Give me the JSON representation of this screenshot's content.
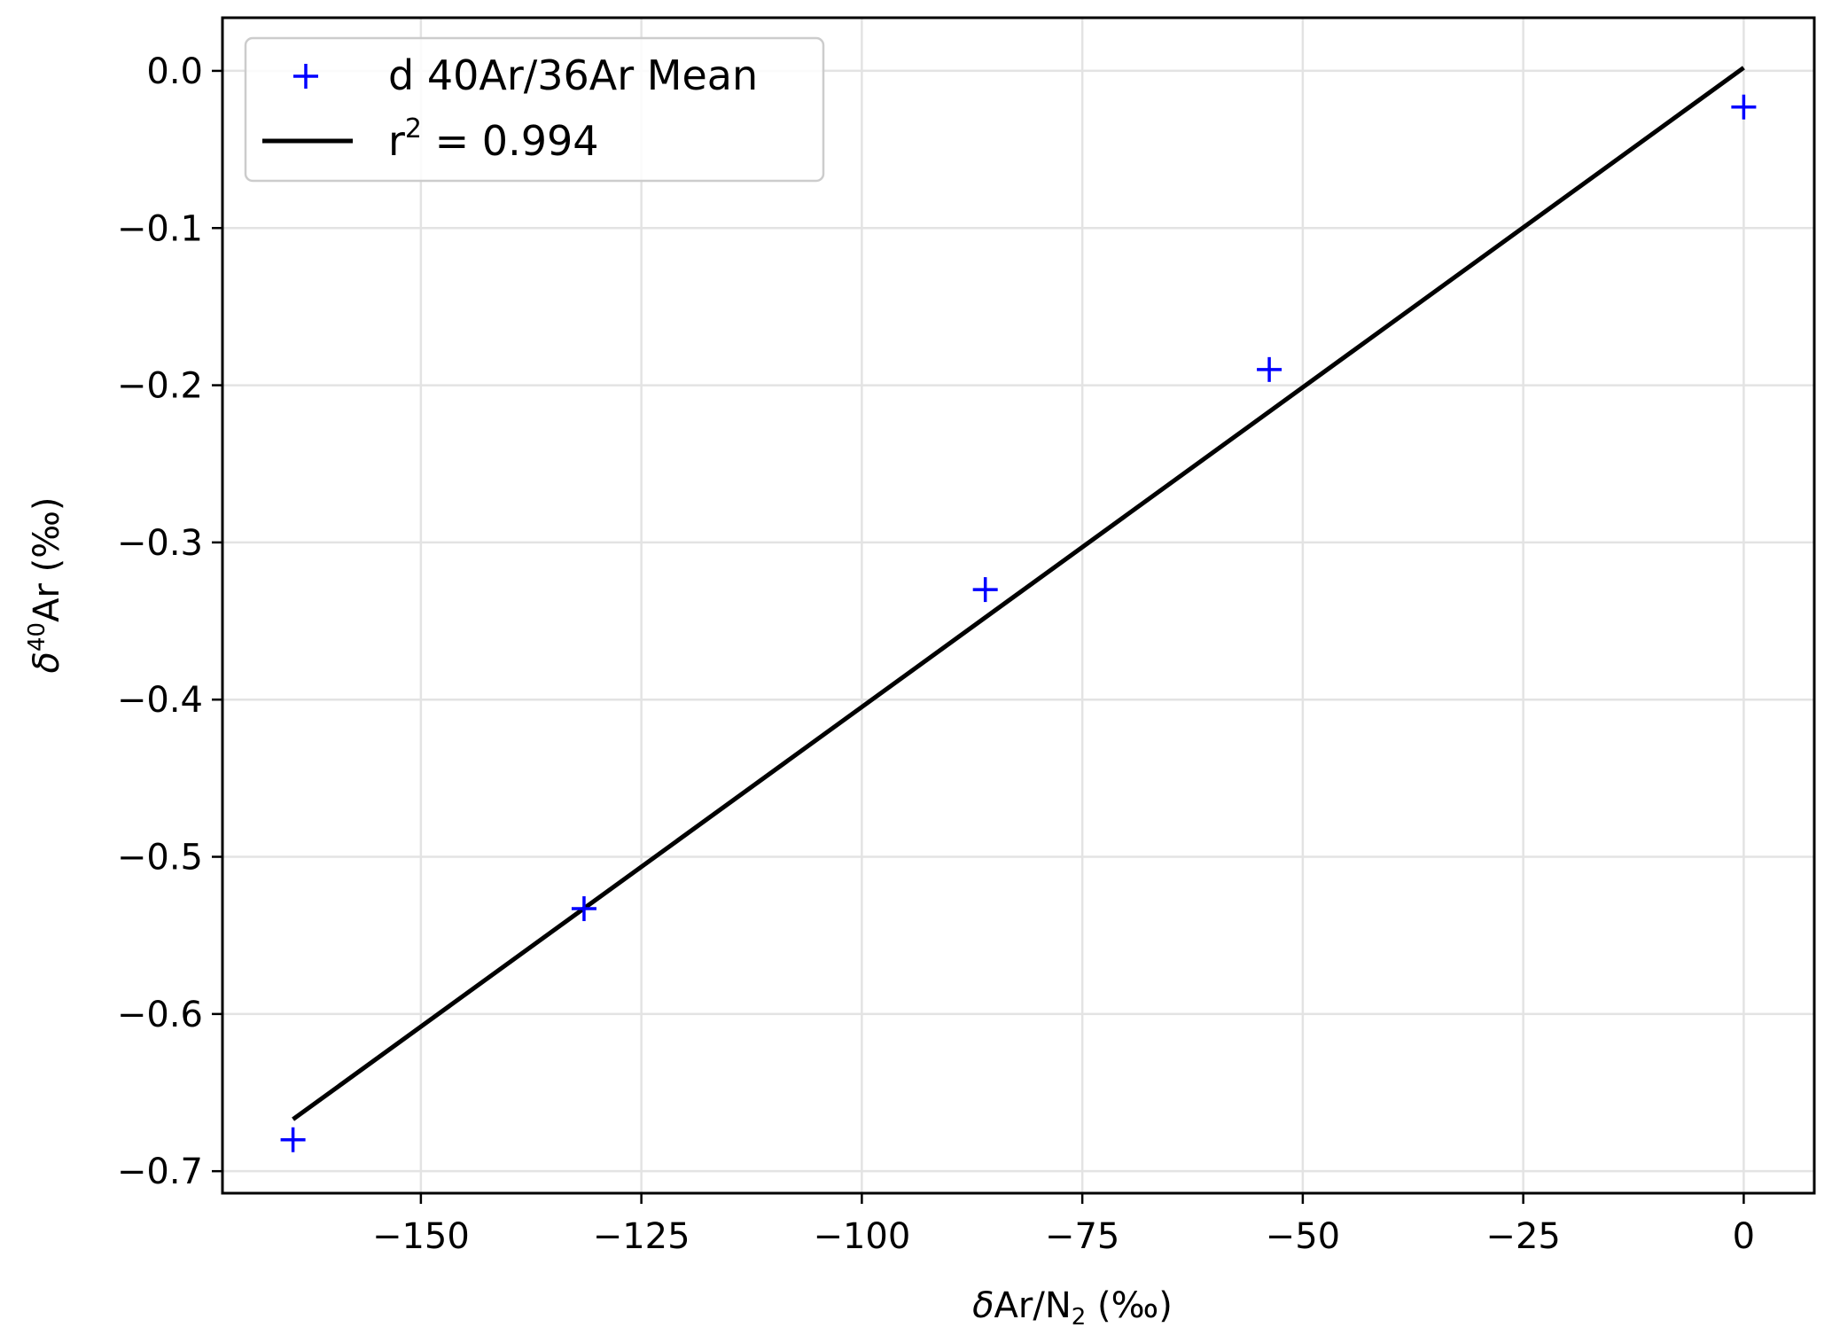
{
  "chart_data": {
    "type": "scatter",
    "xlabel": {
      "prefix": "δAr/N",
      "sub": "2",
      "suffix": " (‰)"
    },
    "ylabel": {
      "prefix": "δ",
      "sup": "40",
      "suffix": "Ar (‰)"
    },
    "xlim": [
      -172.5,
      8
    ],
    "ylim": [
      -0.714,
      0.0338
    ],
    "xticks": [
      -150,
      -125,
      -100,
      -75,
      -50,
      -25,
      0
    ],
    "xtick_labels": [
      "−150",
      "−125",
      "−100",
      "−75",
      "−50",
      "−25",
      "0"
    ],
    "yticks": [
      0.0,
      -0.1,
      -0.2,
      -0.3,
      -0.4,
      -0.5,
      -0.6,
      -0.7
    ],
    "ytick_labels": [
      "0.0",
      "−0.1",
      "−0.2",
      "−0.3",
      "−0.4",
      "−0.5",
      "−0.6",
      "−0.7"
    ],
    "grid": true,
    "legend_position": "upper-left",
    "series": [
      {
        "name": "d 40Ar/36Ar  Mean",
        "kind": "scatter",
        "marker": "plus",
        "color": "#0000ff",
        "x": [
          -164.5,
          -131.5,
          -86.0,
          -53.8,
          0.0
        ],
        "y": [
          -0.68,
          -0.533,
          -0.33,
          -0.19,
          -0.023
        ]
      },
      {
        "name": "r² = 0.994",
        "name_parts": {
          "prefix": "r",
          "sup": "2",
          "suffix": " = 0.994"
        },
        "kind": "line",
        "color": "#000000",
        "x": [
          -164.5,
          0.0
        ],
        "y": [
          -0.667,
          0.002
        ]
      }
    ]
  }
}
